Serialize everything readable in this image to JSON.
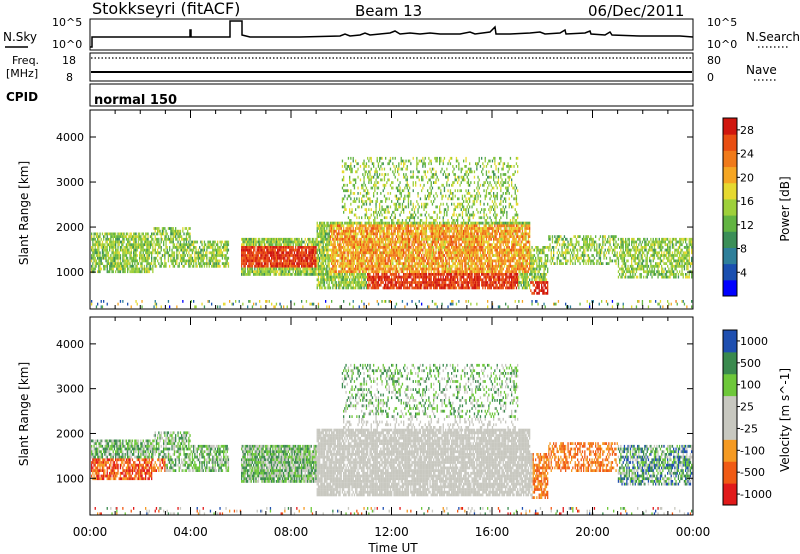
{
  "header": {
    "radar": "Stokkseyri (fitACF)",
    "beam": "Beam 13",
    "date": "06/Dec/2011"
  },
  "noise_panel": {
    "left_label": "N.Sky",
    "right_label": "N.Search",
    "ticks_left": [
      "10^5",
      "10^0"
    ],
    "ticks_right": [
      "10^5",
      "10^0"
    ]
  },
  "freq_panel": {
    "left_label_1": "Freq.",
    "left_label_2": "[MHz]",
    "right_label": "Nave",
    "ticks_left": [
      "18",
      "8"
    ],
    "ticks_right": [
      "80",
      "0"
    ]
  },
  "cpid_panel": {
    "label": "CPID",
    "value": "normal 150"
  },
  "chart_data": [
    {
      "type": "heatmap",
      "title": "",
      "xlabel": "",
      "ylabel": "Slant Range [km]",
      "x_range_hours": [
        0,
        24
      ],
      "ylim": [
        180,
        4600
      ],
      "y_ticks": [
        "4000",
        "3000",
        "2000",
        "1000"
      ],
      "colorbar": {
        "label": "Power [dB]",
        "levels": [
          "28",
          "24",
          "20",
          "16",
          "12",
          "8",
          "4"
        ],
        "range": [
          0,
          30
        ],
        "colors": [
          "#0000ff",
          "#1a4fb0",
          "#2e7f9a",
          "#3b8f58",
          "#62b442",
          "#9ed03a",
          "#e6d930",
          "#f5a623",
          "#f07a1a",
          "#e94e12",
          "#d0160e"
        ]
      }
    },
    {
      "type": "heatmap",
      "title": "",
      "xlabel": "Time UT",
      "ylabel": "Slant Range [km]",
      "x_range_hours": [
        0,
        24
      ],
      "ylim": [
        180,
        4600
      ],
      "y_ticks": [
        "4000",
        "3000",
        "2000",
        "1000"
      ],
      "x_ticks": [
        "00:00",
        "04:00",
        "08:00",
        "12:00",
        "16:00",
        "20:00",
        "00:00"
      ],
      "colorbar": {
        "label": "Velocity [m s^-1]",
        "levels": [
          "1000",
          "500",
          "100",
          "25",
          "-25",
          "-100",
          "-500",
          "-1000"
        ],
        "range": [
          -1000,
          1000
        ],
        "colors": [
          "#e11a1a",
          "#f05a14",
          "#f59a22",
          "#c8c8c0",
          "#c8c8c0",
          "#6ec83a",
          "#3a8a4e",
          "#1f4fb0"
        ]
      }
    }
  ]
}
